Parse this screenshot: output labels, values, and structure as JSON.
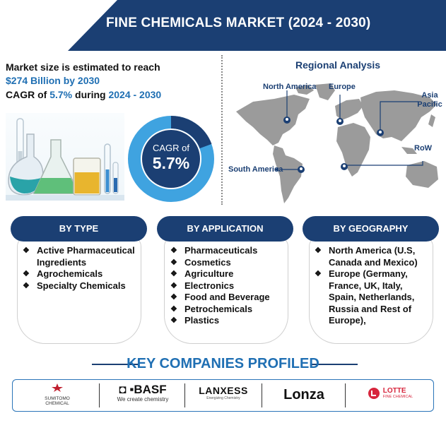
{
  "header": {
    "title": "FINE CHEMICALS MARKET (2024 - 2030)"
  },
  "market": {
    "line1": "Market size is estimated to reach",
    "value": "$274 Billion by 2030",
    "cagr_prefix": "CAGR of ",
    "cagr_value": "5.7%",
    "cagr_mid": " during ",
    "cagr_period": "2024 - 2030"
  },
  "donut": {
    "label": "CAGR of",
    "value": "5.7%"
  },
  "regional": {
    "title": "Regional Analysis",
    "regions": [
      "North America",
      "Europe",
      "Asia Pacific",
      "RoW",
      "South America"
    ]
  },
  "segments": [
    {
      "title": "BY TYPE",
      "items": [
        "Active Pharmaceutical Ingredients",
        "Agrochemicals",
        "Specialty Chemicals"
      ]
    },
    {
      "title": "BY APPLICATION",
      "items": [
        "Pharmaceuticals",
        "Cosmetics",
        "Agriculture",
        "Electronics",
        "Food and Beverage",
        "Petrochemicals",
        "Plastics"
      ]
    },
    {
      "title": "BY GEOGRAPHY",
      "items": [
        "North America (U.S, Canada and Mexico)",
        "Europe (Germany, France, UK, Italy, Spain, Netherlands, Russia and Rest of Europe),"
      ]
    }
  ],
  "key_companies": {
    "title": "KEY COMPANIES PROFILED",
    "companies": [
      {
        "name_line1": "SUMITOMO",
        "name_line2": "CHEMICAL"
      },
      {
        "name": "BASF",
        "tagline": "We create chemistry"
      },
      {
        "name": "LANXESS",
        "tagline": "Energizing Chemistry"
      },
      {
        "name": "Lonza"
      },
      {
        "name": "LOTTE",
        "tagline": "FINE CHEMICAL"
      }
    ]
  },
  "colors": {
    "navy": "#1b3f73",
    "accent_blue": "#1f6fb3",
    "donut_light": "#3fa3e0"
  }
}
